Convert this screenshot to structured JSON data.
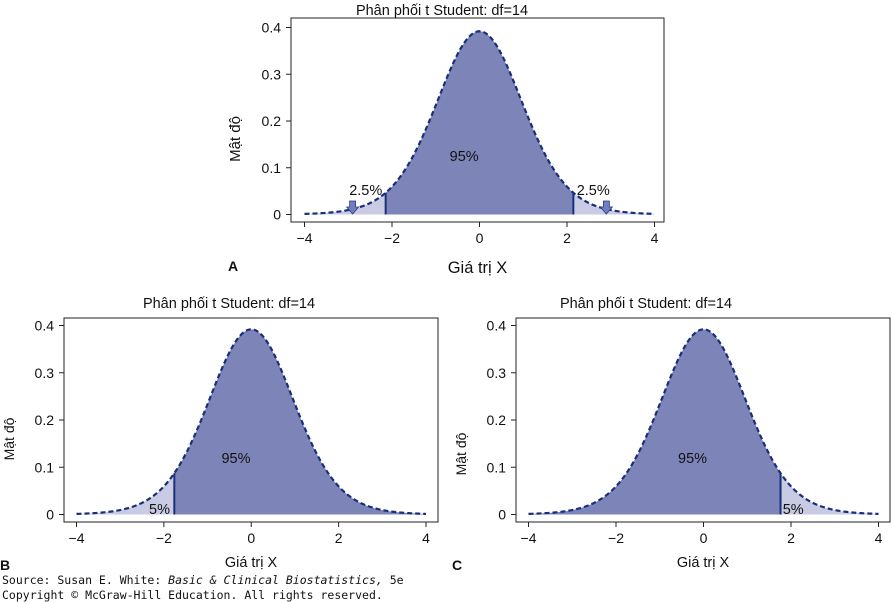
{
  "chart_data": [
    {
      "type": "area",
      "panel_letter": "A",
      "title": "Phân phối t Student: df=14",
      "xlabel": "Giá trị X",
      "ylabel": "Mật độ",
      "distribution": "t",
      "df": 14,
      "xlim": [
        -4,
        4
      ],
      "ylim": [
        0,
        0.4
      ],
      "xticks": [
        -4,
        -2,
        0,
        2,
        4
      ],
      "xtick_labels": [
        "−4",
        "−2",
        "0",
        "2",
        "4"
      ],
      "yticks": [
        0,
        0.1,
        0.2,
        0.3,
        0.4
      ],
      "ytick_labels": [
        "0",
        "0.1",
        "0.2",
        "0.3",
        "0.4"
      ],
      "critical_values": [
        -2.145,
        2.145
      ],
      "regions": [
        {
          "label": "2.5%",
          "from": -4,
          "to": -2.145,
          "tone": "light"
        },
        {
          "label": "95%",
          "from": -2.145,
          "to": 2.145,
          "tone": "dark"
        },
        {
          "label": "2.5%",
          "from": 2.145,
          "to": 4,
          "tone": "light"
        }
      ],
      "annotations": [
        {
          "text": "2.5%",
          "arrow_x": -2.9
        },
        {
          "text": "95%"
        },
        {
          "text": "2.5%",
          "arrow_x": 2.9
        }
      ]
    },
    {
      "type": "area",
      "panel_letter": "B",
      "title": "Phân phối t Student: df=14",
      "xlabel": "Giá trị X",
      "ylabel": "Mật độ",
      "distribution": "t",
      "df": 14,
      "xlim": [
        -4,
        4
      ],
      "ylim": [
        0,
        0.4
      ],
      "xticks": [
        -4,
        -2,
        0,
        2,
        4
      ],
      "xtick_labels": [
        "−4",
        "−2",
        "0",
        "2",
        "4"
      ],
      "yticks": [
        0,
        0.1,
        0.2,
        0.3,
        0.4
      ],
      "ytick_labels": [
        "0",
        "0.1",
        "0.2",
        "0.3",
        "0.4"
      ],
      "critical_values": [
        -1.761
      ],
      "regions": [
        {
          "label": "5%",
          "from": -4,
          "to": -1.761,
          "tone": "light"
        },
        {
          "label": "95%",
          "from": -1.761,
          "to": 4,
          "tone": "dark"
        }
      ]
    },
    {
      "type": "area",
      "panel_letter": "C",
      "title": "Phân phối t Student: df=14",
      "xlabel": "Giá trị X",
      "ylabel": "Mật độ",
      "distribution": "t",
      "df": 14,
      "xlim": [
        -4,
        4
      ],
      "ylim": [
        0,
        0.4
      ],
      "xticks": [
        -4,
        -2,
        0,
        2,
        4
      ],
      "xtick_labels": [
        "−4",
        "−2",
        "0",
        "2",
        "4"
      ],
      "yticks": [
        0,
        0.1,
        0.2,
        0.3,
        0.4
      ],
      "ytick_labels": [
        "0",
        "0.1",
        "0.2",
        "0.3",
        "0.4"
      ],
      "critical_values": [
        1.761
      ],
      "regions": [
        {
          "label": "95%",
          "from": -4,
          "to": 1.761,
          "tone": "dark"
        },
        {
          "label": "5%",
          "from": 1.761,
          "to": 4,
          "tone": "light"
        }
      ]
    }
  ],
  "colors": {
    "dark_fill": "#7d85b8",
    "light_fill": "#c8cbe3",
    "curve": "#1a2e7a",
    "critical_line": "#1a2e7a",
    "arrow_fill": "#6f7fbf"
  },
  "source": {
    "prefix": "Source: Susan E. White: ",
    "book": "Basic & Clinical Biostatistics,",
    "suffix": " 5e",
    "copyright": "Copyright © McGraw-Hill Education. All rights reserved."
  }
}
